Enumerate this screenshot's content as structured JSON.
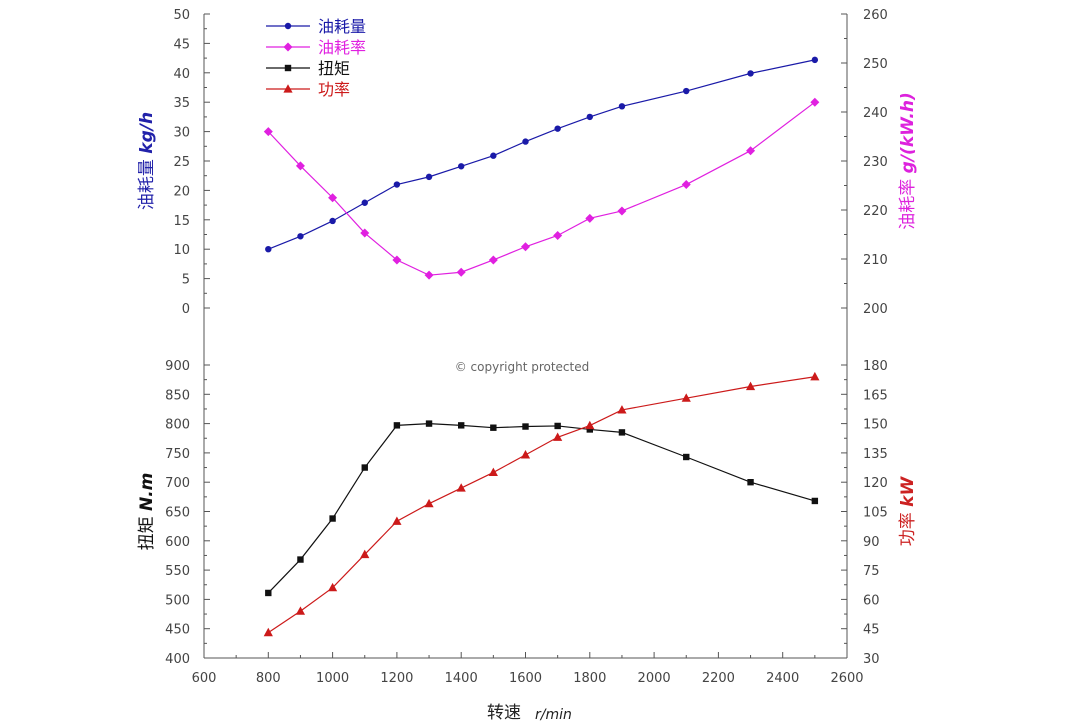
{
  "watermark": "© copyright protected",
  "chart_data": [
    {
      "type": "line",
      "x_values": [
        800,
        900,
        1000,
        1100,
        1200,
        1300,
        1400,
        1500,
        1600,
        1700,
        1800,
        1900,
        2100,
        2300,
        2500
      ],
      "xlabel": "转速",
      "xlabel_unit": "r/min",
      "xlim": [
        600,
        2600
      ],
      "x_ticks": [
        600,
        800,
        1000,
        1200,
        1400,
        1600,
        1800,
        2000,
        2200,
        2400,
        2600
      ],
      "legend_position": "top-left",
      "grid": false,
      "y_left": {
        "label": "油耗量",
        "unit": "kg/h",
        "ylim": [
          0,
          50
        ],
        "ticks": [
          0,
          5,
          10,
          15,
          20,
          25,
          30,
          35,
          40,
          45,
          50
        ],
        "color": "#2222aa"
      },
      "y_right": {
        "label": "油耗率",
        "unit": "g/(kW.h)",
        "ylim": [
          200,
          260
        ],
        "ticks": [
          200,
          210,
          220,
          230,
          240,
          250,
          260
        ],
        "color": "#dd22dd"
      },
      "series": [
        {
          "name": "油耗量",
          "axis": "left",
          "marker": "circle",
          "color": "#1a1aa8",
          "x": [
            800,
            900,
            1000,
            1100,
            1200,
            1300,
            1400,
            1500,
            1600,
            1700,
            1800,
            1900,
            2100,
            2300,
            2500
          ],
          "values": [
            10,
            12.2,
            14.8,
            17.9,
            21.0,
            22.3,
            24.1,
            25.9,
            28.3,
            30.5,
            32.5,
            34.3,
            36.9,
            39.9,
            42.2
          ]
        },
        {
          "name": "油耗率",
          "axis": "right",
          "marker": "diamond",
          "color": "#e020e0",
          "x": [
            800,
            900,
            1000,
            1100,
            1200,
            1300,
            1400,
            1500,
            1600,
            1700,
            1800,
            1900,
            2100,
            2300,
            2500
          ],
          "values": [
            236,
            229,
            222.5,
            215.3,
            209.8,
            206.7,
            207.3,
            209.8,
            212.5,
            214.8,
            218.3,
            219.8,
            225.2,
            232.1,
            242
          ]
        }
      ]
    },
    {
      "type": "line",
      "x_values": [
        800,
        900,
        1000,
        1100,
        1200,
        1300,
        1400,
        1500,
        1600,
        1700,
        1800,
        1900,
        2100,
        2300,
        2500
      ],
      "xlim": [
        600,
        2600
      ],
      "y_left": {
        "label": "扭矩",
        "unit": "N.m",
        "ylim": [
          400,
          900
        ],
        "ticks": [
          400,
          450,
          500,
          550,
          600,
          650,
          700,
          750,
          800,
          850,
          900
        ],
        "color": "#111111"
      },
      "y_right": {
        "label": "功率",
        "unit": "kW",
        "ylim": [
          30,
          180
        ],
        "ticks": [
          30,
          45,
          60,
          75,
          90,
          105,
          120,
          135,
          150,
          165,
          180
        ],
        "color": "#cc2222"
      },
      "series": [
        {
          "name": "扭矩",
          "axis": "left",
          "marker": "square",
          "color": "#111111",
          "x": [
            800,
            900,
            1000,
            1100,
            1200,
            1300,
            1400,
            1500,
            1600,
            1700,
            1800,
            1900,
            2100,
            2300,
            2500
          ],
          "values": [
            511,
            568,
            638,
            725,
            797,
            800,
            797,
            793,
            795,
            796,
            790,
            785,
            743,
            700,
            668
          ]
        },
        {
          "name": "功率",
          "axis": "right",
          "marker": "triangle",
          "color": "#cc1a1a",
          "x": [
            800,
            900,
            1000,
            1100,
            1200,
            1300,
            1400,
            1500,
            1600,
            1700,
            1800,
            1900,
            2100,
            2300,
            2500
          ],
          "values": [
            43,
            54,
            66,
            83,
            100,
            109,
            117,
            125,
            134,
            143,
            149,
            157,
            163,
            169,
            174
          ]
        }
      ]
    }
  ]
}
